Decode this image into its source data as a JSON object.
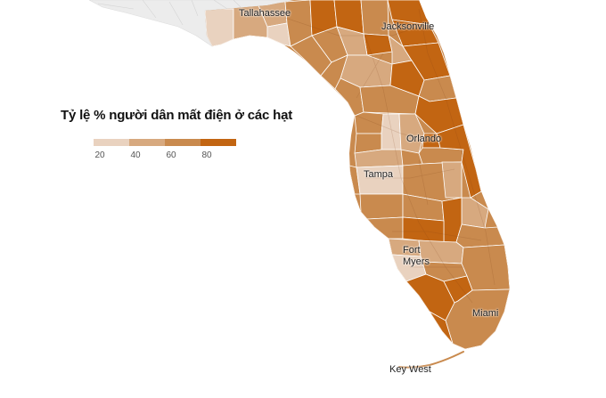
{
  "legend": {
    "title": "Tỷ lệ % người dân mất điện ở các hạt",
    "ticks": [
      "20",
      "40",
      "60",
      "80"
    ],
    "colors": [
      "#e9d2bf",
      "#d7a97f",
      "#c98a4e",
      "#c26512"
    ]
  },
  "cities": {
    "tallahassee": "Tallahassee",
    "jacksonville": "Jacksonville",
    "orlando": "Orlando",
    "tampa": "Tampa",
    "fort_myers": "Fort\nMyers",
    "miami": "Miami",
    "key_west": "Key West"
  },
  "colors": {
    "land_neighbor": "#ececec",
    "border": "#ffffff",
    "sea": "#ffffff"
  }
}
